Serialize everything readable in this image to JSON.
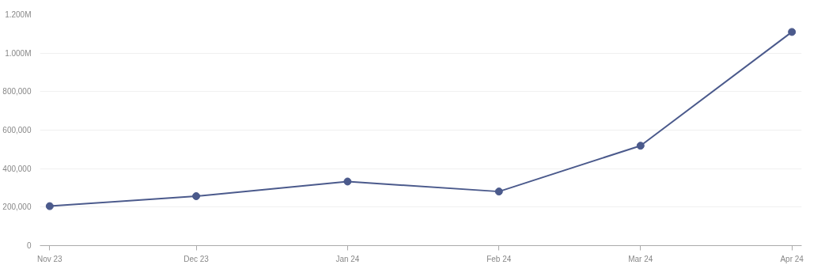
{
  "chart_data": {
    "type": "line",
    "x": [
      "2023-11",
      "2023-12",
      "2024-01",
      "2024-02",
      "2024-03",
      "2024-04"
    ],
    "series": [
      {
        "color": "#4b5a8c",
        "values": [
          205000,
          257000,
          333000,
          281000,
          519000,
          1110000
        ]
      }
    ],
    "xlim": [
      "2023-10-30",
      "2024-04-03"
    ],
    "xticks": [
      {
        "value": "2023-11",
        "label": "Nov 23"
      },
      {
        "value": "2023-12",
        "label": "Dec 23"
      },
      {
        "value": "2024-01",
        "label": "Jan 24"
      },
      {
        "value": "2024-02",
        "label": "Feb 24"
      },
      {
        "value": "2024-03",
        "label": "Mar 24"
      },
      {
        "value": "2024-04",
        "label": "Apr 24"
      }
    ],
    "ylim": [
      0,
      1200000
    ],
    "yticks": [
      {
        "value": 0,
        "label": "0"
      },
      {
        "value": 200000,
        "label": "200,000"
      },
      {
        "value": 400000,
        "label": "400,000"
      },
      {
        "value": 600000,
        "label": "600,000"
      },
      {
        "value": 800000,
        "label": "800,000"
      },
      {
        "value": 1000000,
        "label": "1.000M"
      },
      {
        "value": 1200000,
        "label": "1.200M"
      }
    ],
    "grid": "y",
    "marker": "circle",
    "line_style": "solid"
  }
}
